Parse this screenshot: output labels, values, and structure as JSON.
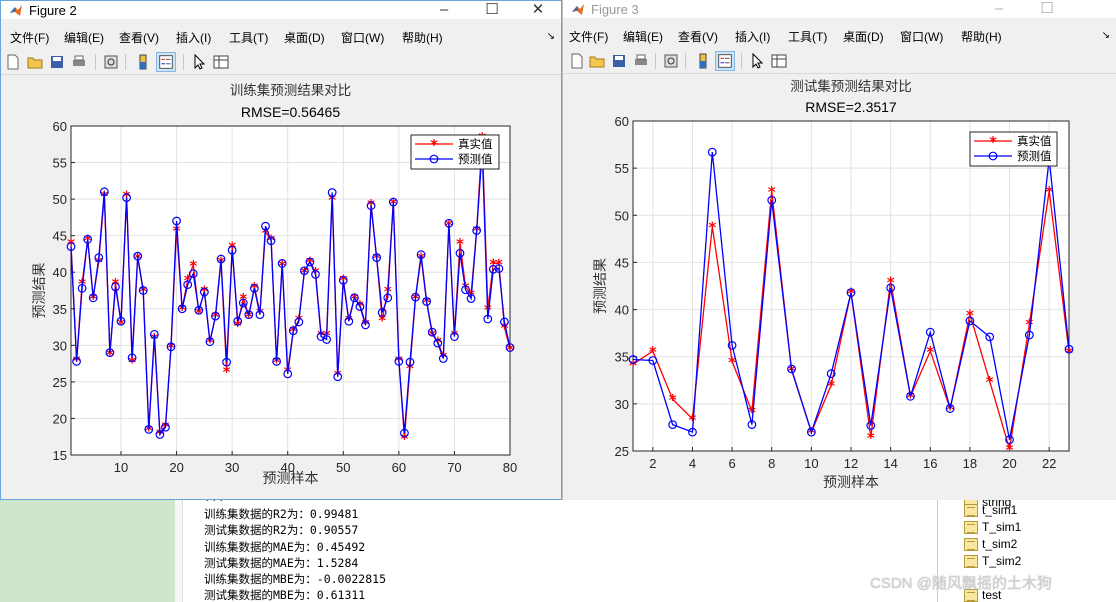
{
  "figure2": {
    "title": "Figure 2",
    "menus": [
      "文件(F)",
      "编辑(E)",
      "查看(V)",
      "插入(I)",
      "工具(T)",
      "桌面(D)",
      "窗口(W)",
      "帮助(H)"
    ],
    "toolbar_icons": [
      "new-figure-icon",
      "open-file-icon",
      "save-icon",
      "print-icon",
      "print-preview-icon",
      "colorbar-icon",
      "legend-icon",
      "pointer-icon",
      "property-editor-icon"
    ]
  },
  "figure3": {
    "title": "Figure 3",
    "menus": [
      "文件(F)",
      "编辑(E)",
      "查看(V)",
      "插入(I)",
      "工具(T)",
      "桌面(D)",
      "窗口(W)",
      "帮助(H)"
    ],
    "toolbar_icons": [
      "new-figure-icon",
      "open-file-icon",
      "save-icon",
      "print-icon",
      "print-preview-icon",
      "colorbar-icon",
      "legend-icon",
      "pointer-icon",
      "property-editor-icon"
    ]
  },
  "chart_data": [
    {
      "type": "line",
      "title": "训练集预测结果对比",
      "subtitle": "RMSE=0.56465",
      "xlabel": "预测样本",
      "ylabel": "预测结果",
      "xlim": [
        1,
        80
      ],
      "ylim": [
        15,
        60
      ],
      "xticks": [
        10,
        20,
        30,
        40,
        50,
        60,
        70,
        80
      ],
      "yticks": [
        15,
        20,
        25,
        30,
        35,
        40,
        45,
        50,
        55,
        60
      ],
      "grid": true,
      "legend": "top-right",
      "series": [
        {
          "name": "真实值",
          "color": "#ff0000",
          "marker": "*",
          "values": [
            44,
            28,
            38.5,
            44.5,
            36.5,
            41.5,
            50.5,
            28.8,
            38.5,
            33,
            50.5,
            27.8,
            42,
            37.5,
            18.5,
            31,
            18,
            19,
            29.8,
            45.8,
            35,
            39,
            41,
            34.5,
            37.5,
            30.5,
            34,
            41.5,
            26.5,
            43.5,
            32.8,
            36.5,
            34,
            38,
            34.5,
            45.5,
            44.5,
            27.8,
            41,
            26.5,
            32,
            33.5,
            40,
            41.5,
            40,
            31.5,
            31.5,
            50,
            26,
            39,
            33.5,
            36.5,
            35.5,
            33,
            49.3,
            42,
            33.5,
            37.5,
            49.5,
            28,
            17.3,
            27,
            36.5,
            42,
            36,
            31.5,
            30.5,
            28.5,
            46.5,
            31.5,
            44,
            38,
            37,
            45.8,
            58.5,
            35,
            41.2,
            41.2,
            32.5,
            29.5
          ]
        },
        {
          "name": "预测值",
          "color": "#0000ff",
          "marker": "o",
          "values": [
            43.5,
            27.8,
            37.8,
            44.5,
            36.5,
            42,
            51,
            29,
            38,
            33.3,
            50.2,
            28.3,
            42.2,
            37.5,
            18.5,
            31.5,
            17.8,
            18.8,
            29.8,
            47,
            35,
            38.3,
            39.8,
            34.8,
            37.3,
            30.5,
            34,
            41.8,
            27.7,
            43,
            33.3,
            35.8,
            34.2,
            37.8,
            34.2,
            46.3,
            44.3,
            27.8,
            41.2,
            26.1,
            32,
            33.2,
            40.2,
            41.4,
            39.7,
            31.2,
            30.8,
            50.9,
            25.7,
            38.9,
            33.3,
            36.5,
            35.3,
            32.8,
            49.1,
            42,
            34.5,
            36.5,
            49.6,
            27.8,
            18,
            27.7,
            36.6,
            42.4,
            36,
            31.8,
            30.3,
            28.2,
            46.7,
            31.2,
            42.6,
            37.6,
            36.4,
            45.7,
            56.8,
            33.6,
            40.4,
            40.5,
            33.2,
            29.7
          ]
        }
      ]
    },
    {
      "type": "line",
      "title": "测试集预测结果对比",
      "subtitle": "RMSE=2.3517",
      "xlabel": "预测样本",
      "ylabel": "预测结果",
      "xlim": [
        1,
        23
      ],
      "ylim": [
        25,
        60
      ],
      "xticks": [
        2,
        4,
        6,
        8,
        10,
        12,
        14,
        16,
        18,
        20,
        22
      ],
      "yticks": [
        25,
        30,
        35,
        40,
        45,
        50,
        55,
        60
      ],
      "grid": true,
      "legend": "top-right",
      "series": [
        {
          "name": "真实值",
          "color": "#ff0000",
          "marker": "*",
          "values": [
            34.2,
            35.6,
            30.5,
            28.4,
            48.8,
            34.5,
            29.2,
            52.6,
            33.6,
            27,
            32,
            41.8,
            26.5,
            43,
            30.8,
            35.6,
            29.5,
            39.5,
            32.4,
            25.2,
            38.5,
            52.6,
            35.5
          ]
        },
        {
          "name": "预测值",
          "color": "#0000ff",
          "marker": "o",
          "values": [
            34.7,
            34.6,
            27.8,
            27,
            56.7,
            36.2,
            27.8,
            51.6,
            33.7,
            27,
            33.2,
            41.8,
            27.7,
            42.3,
            30.8,
            37.6,
            29.5,
            38.8,
            37.1,
            26.2,
            37.3,
            56,
            35.8
          ]
        }
      ]
    }
  ],
  "command_window": {
    "lines": [
      "训练集数据的R2为：0.99481",
      "测试集数据的R2为：0.90557",
      "训练集数据的MAE为：0.45492",
      "测试集数据的MAE为：1.5284",
      "训练集数据的MBE为：-0.0022815",
      "测试集数据的MBE为：0.61311"
    ]
  },
  "workspace": {
    "items": [
      "string",
      "t_sim1",
      "T_sim1",
      "t_sim2",
      "T_sim2",
      "test"
    ]
  },
  "watermark": "CSDN @随风飘摇的土木狗"
}
